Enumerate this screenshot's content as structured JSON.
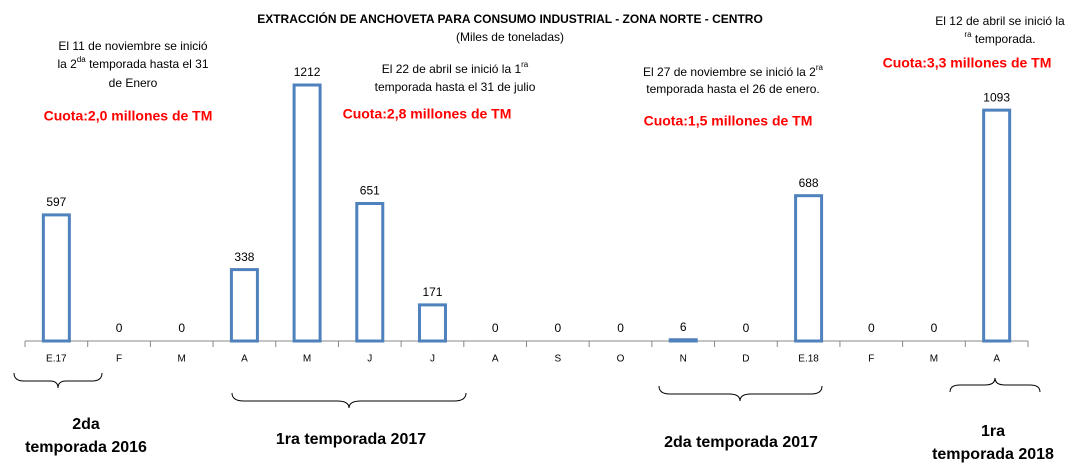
{
  "chart_data": {
    "type": "bar",
    "title": "EXTRACCIÓN DE ANCHOVETA PARA CONSUMO INDUSTRIAL - ZONA NORTE - CENTRO",
    "subtitle": "(Miles de toneladas)",
    "categories": [
      "E.17",
      "F",
      "M",
      "A",
      "M",
      "J",
      "J",
      "A",
      "S",
      "O",
      "N",
      "D",
      "E.18",
      "F",
      "M",
      "A"
    ],
    "values": [
      597,
      0,
      0,
      338,
      1212,
      651,
      171,
      0,
      0,
      0,
      6,
      0,
      688,
      0,
      0,
      1093
    ],
    "color": "#4f81bd",
    "annotations": [
      {
        "lines": [
          [
            "El 11 de noviembre se inició"
          ],
          [
            "la 2",
            "da",
            " temporada  hasta el 31"
          ],
          [
            "de Enero"
          ]
        ],
        "quota": "Cuota:2,0 millones de TM"
      },
      {
        "lines": [
          [
            "El 22 de abril se inició la 1",
            "ra"
          ],
          [
            "temporada hasta el 31 de julio"
          ]
        ],
        "quota": "Cuota:2,8 millones de TM"
      },
      {
        "lines": [
          [
            "El 27 de noviembre se inició la 2",
            "ra"
          ],
          [
            "temporada hasta el 26 de enero."
          ]
        ],
        "quota": "Cuota:1,5 millones de TM"
      },
      {
        "lines": [
          [
            "El 12 de abril se inició la"
          ],
          [
            "",
            "ra",
            " temporada."
          ]
        ],
        "quota": "Cuota:3,3 millones de TM"
      }
    ],
    "periods": [
      [
        "2da",
        "temporada 2016"
      ],
      [
        "1ra temporada 2017"
      ],
      [
        "2da temporada 2017"
      ],
      [
        "1ra",
        "temporada 2018"
      ]
    ]
  }
}
